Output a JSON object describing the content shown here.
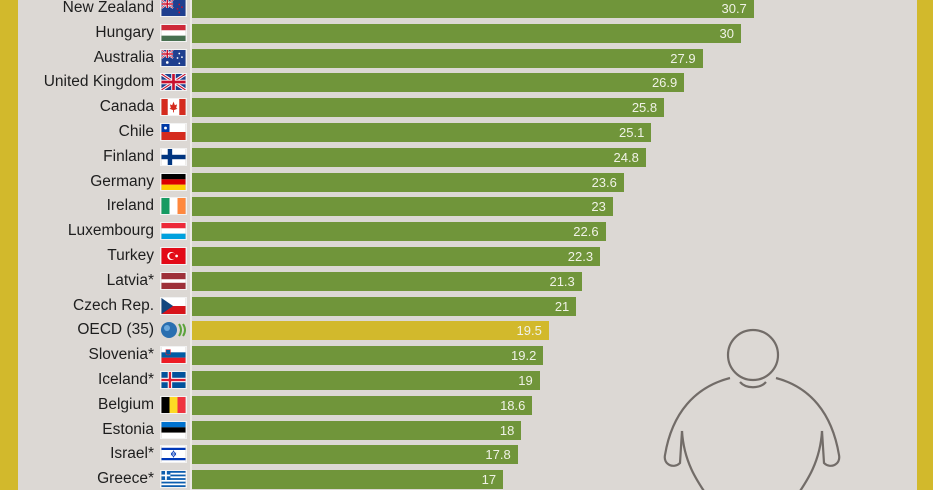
{
  "colors": {
    "frame": "#d2b92c",
    "background": "#dcd8d4",
    "bar": "#70953a",
    "highlight_bar": "#d2b92c",
    "value_text": "#f0f2e6",
    "figure_stroke": "#726c68"
  },
  "chart_data": {
    "type": "bar",
    "orientation": "horizontal",
    "title": "",
    "xlabel": "",
    "ylabel": "",
    "categories": [
      "New Zealand",
      "Hungary",
      "Australia",
      "United Kingdom",
      "Canada",
      "Chile",
      "Finland",
      "Germany",
      "Ireland",
      "Luxembourg",
      "Turkey",
      "Latvia*",
      "Czech Rep.",
      "OECD (35)",
      "Slovenia*",
      "Iceland*",
      "Belgium",
      "Estonia",
      "Israel*",
      "Greece*"
    ],
    "values": [
      30.7,
      30,
      27.9,
      26.9,
      25.8,
      25.1,
      24.8,
      23.6,
      23,
      22.6,
      22.3,
      21.3,
      21,
      19.5,
      19.2,
      19,
      18.6,
      18,
      17.8,
      17
    ],
    "value_labels": [
      "30.7",
      "30",
      "27.9",
      "26.9",
      "25.8",
      "25.1",
      "24.8",
      "23.6",
      "23",
      "22.6",
      "22.3",
      "21.3",
      "21",
      "19.5",
      "19.2",
      "19",
      "18.6",
      "18",
      "17.8",
      "17"
    ],
    "highlighted_category": "OECD (35)",
    "grid": false,
    "legend": "none",
    "data_labels": "inside-end"
  },
  "rows": [
    {
      "label": "New Zealand",
      "value": "30.7",
      "flag": "flag-new-zealand"
    },
    {
      "label": "Hungary",
      "value": "30",
      "flag": "flag-hungary"
    },
    {
      "label": "Australia",
      "value": "27.9",
      "flag": "flag-australia"
    },
    {
      "label": "United Kingdom",
      "value": "26.9",
      "flag": "flag-united-kingdom"
    },
    {
      "label": "Canada",
      "value": "25.8",
      "flag": "flag-canada"
    },
    {
      "label": "Chile",
      "value": "25.1",
      "flag": "flag-chile"
    },
    {
      "label": "Finland",
      "value": "24.8",
      "flag": "flag-finland"
    },
    {
      "label": "Germany",
      "value": "23.6",
      "flag": "flag-germany"
    },
    {
      "label": "Ireland",
      "value": "23",
      "flag": "flag-ireland"
    },
    {
      "label": "Luxembourg",
      "value": "22.6",
      "flag": "flag-luxembourg"
    },
    {
      "label": "Turkey",
      "value": "22.3",
      "flag": "flag-turkey"
    },
    {
      "label": "Latvia*",
      "value": "21.3",
      "flag": "flag-latvia"
    },
    {
      "label": "Czech Rep.",
      "value": "21",
      "flag": "flag-czech-republic"
    },
    {
      "label": "OECD (35)",
      "value": "19.5",
      "flag": "oecd-logo"
    },
    {
      "label": "Slovenia*",
      "value": "19.2",
      "flag": "flag-slovenia"
    },
    {
      "label": "Iceland*",
      "value": "19",
      "flag": "flag-iceland"
    },
    {
      "label": "Belgium",
      "value": "18.6",
      "flag": "flag-belgium"
    },
    {
      "label": "Estonia",
      "value": "18",
      "flag": "flag-estonia"
    },
    {
      "label": "Israel*",
      "value": "17.8",
      "flag": "flag-israel"
    },
    {
      "label": "Greece*",
      "value": "17",
      "flag": "flag-greece"
    }
  ],
  "illustration": {
    "icon": "overweight-person-icon"
  }
}
